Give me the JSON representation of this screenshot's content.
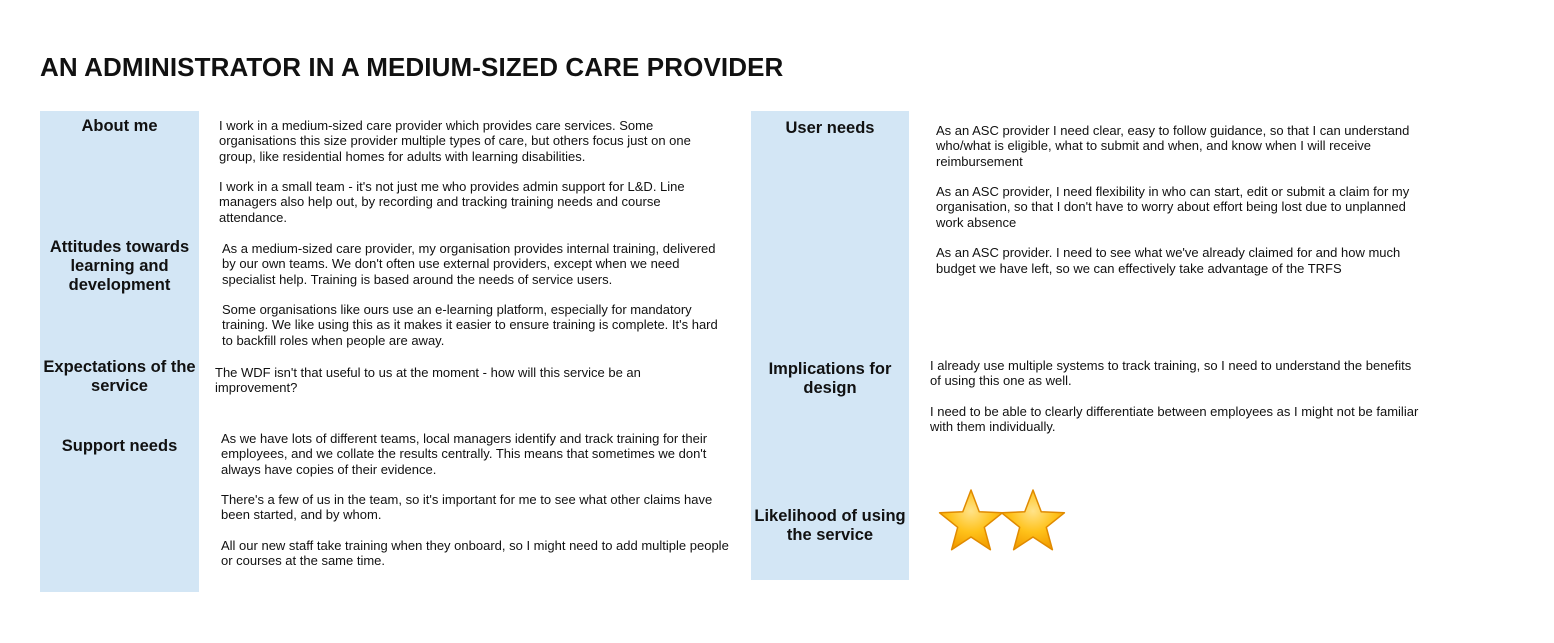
{
  "title": "AN ADMINISTRATOR IN A MEDIUM-SIZED CARE PROVIDER",
  "left_sections": {
    "about_me": {
      "label": "About me",
      "paragraphs": [
        "I work in a medium-sized care provider which provides care services. Some organisations this size provider multiple types of care, but others focus just on one group, like residential homes for adults with learning disabilities.",
        "I work in a small team - it's not just me who provides admin support for L&D. Line managers also help out, by recording and tracking training needs and course attendance."
      ]
    },
    "attitudes": {
      "label": "Attitudes towards learning and development",
      "paragraphs": [
        "As a medium-sized care provider, my organisation provides internal training, delivered by our own teams. We don't often use external providers, except when we need specialist help. Training is based around the needs of service users.",
        "Some organisations like ours use an e-learning platform, especially for mandatory training. We like using this as it makes it easier to ensure training is complete. It's hard to backfill roles when people are away."
      ]
    },
    "expectations": {
      "label": "Expectations of the service",
      "paragraphs": [
        "The WDF isn't that useful to us at the moment - how will this service be an improvement?"
      ]
    },
    "support_needs": {
      "label": "Support needs",
      "paragraphs": [
        "As we have lots of different teams, local managers identify and track training for their employees, and we collate the results centrally. This means that sometimes we don't always have copies of their evidence.",
        "There's a few of us in the team, so it's important for me to see what other claims have been started, and by whom.",
        "All our new staff take training when they onboard, so I might need to add multiple people or courses at the same time."
      ]
    }
  },
  "right_sections": {
    "user_needs": {
      "label": "User needs",
      "paragraphs": [
        "As an ASC provider I need clear, easy to follow guidance, so that I can understand who/what is eligible, what to submit and when, and know when I will receive reimbursement",
        "As an ASC provider, I need flexibility in who can start, edit or submit a claim for my organisation, so that I don't have to worry about effort being lost due to unplanned work absence",
        "As an ASC provider. I need to see what we've already claimed for and how much budget we have left, so we can effectively take advantage of the TRFS"
      ]
    },
    "implications": {
      "label": "Implications for design",
      "paragraphs": [
        "I already use multiple systems to track training, so I need to understand the benefits of using this one as well.",
        "I need to be able to clearly differentiate between employees as I might not be familiar with them individually."
      ]
    },
    "likelihood": {
      "label": "Likelihood of using the service",
      "stars": 2,
      "star_icon": "star-icon",
      "star_color": "#f7b500"
    }
  },
  "colors": {
    "label_bg": "#d3e6f5",
    "text": "#111111"
  }
}
